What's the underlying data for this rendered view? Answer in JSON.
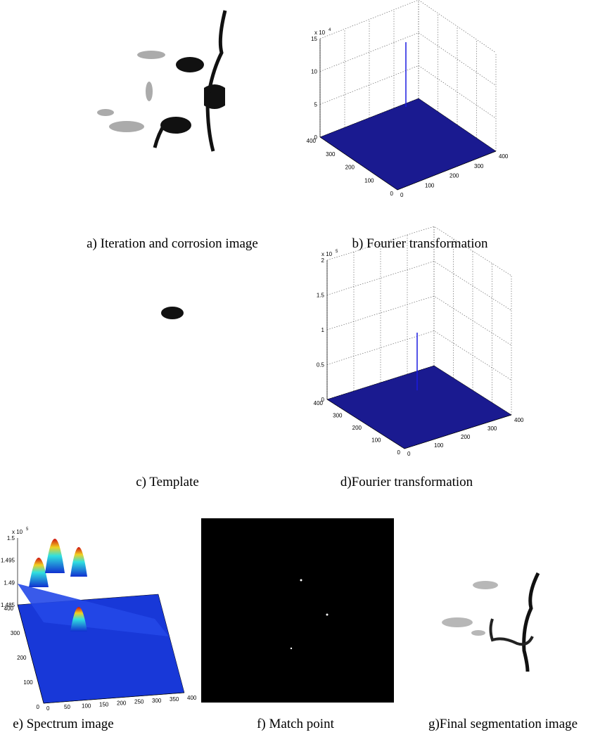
{
  "panels": [
    {
      "caption": "a) Iteration and corrosion image"
    },
    {
      "caption": "b) Fourier transformation",
      "multiplier": "x 10",
      "exponent": "4",
      "zticks": [
        "0",
        "5",
        "10",
        "15"
      ],
      "left_ticks": [
        "400",
        "300",
        "200",
        "100",
        "0"
      ],
      "right_ticks": [
        "0",
        "100",
        "200",
        "300",
        "400"
      ]
    },
    {
      "caption": "c) Template"
    },
    {
      "caption": "d)Fourier transformation",
      "multiplier": "x 10",
      "exponent": "5",
      "zticks": [
        "0",
        "0.5",
        "1",
        "1.5",
        "2"
      ],
      "left_ticks": [
        "400",
        "300",
        "200",
        "100",
        "0"
      ],
      "right_ticks": [
        "0",
        "100",
        "200",
        "300",
        "400"
      ]
    },
    {
      "caption": "e) Spectrum image",
      "multiplier": "x 10",
      "exponent": "5",
      "zticks": [
        "1.485",
        "1.49",
        "1.495",
        "1.5"
      ],
      "left_ticks": [
        "400",
        "300",
        "200",
        "100",
        "0"
      ],
      "right_ticks": [
        "0",
        "50",
        "100",
        "150",
        "200",
        "250",
        "300",
        "350",
        "400"
      ]
    },
    {
      "caption": "f) Match point"
    },
    {
      "caption": "g)Final segmentation image"
    }
  ]
}
